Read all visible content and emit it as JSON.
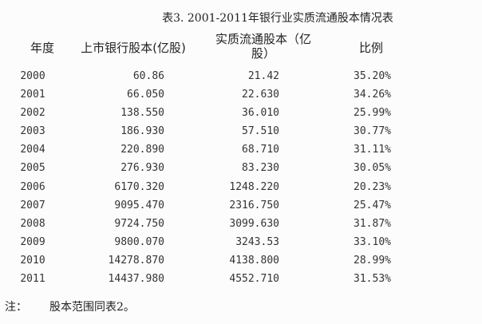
{
  "title": "表3. 2001-2011年银行业实质流通股本情况表",
  "headers": {
    "year": "年度",
    "listed_shares": "上市银行股本(亿股)",
    "float_shares_line1": "实质流通股本（亿",
    "float_shares_line2": "股）",
    "ratio": "比例"
  },
  "rows": [
    {
      "year": "2000",
      "listed": "60.86",
      "float": "21.42",
      "ratio": "35.20%"
    },
    {
      "year": "2001",
      "listed": "66.050",
      "float": "22.630",
      "ratio": "34.26%"
    },
    {
      "year": "2002",
      "listed": "138.550",
      "float": "36.010",
      "ratio": "25.99%"
    },
    {
      "year": "2003",
      "listed": "186.930",
      "float": "57.510",
      "ratio": "30.77%"
    },
    {
      "year": "2004",
      "listed": "220.890",
      "float": "68.710",
      "ratio": "31.11%"
    },
    {
      "year": "2005",
      "listed": "276.930",
      "float": "83.230",
      "ratio": "30.05%"
    },
    {
      "year": "2006",
      "listed": "6170.320",
      "float": "1248.220",
      "ratio": "20.23%"
    },
    {
      "year": "2007",
      "listed": "9095.470",
      "float": "2316.750",
      "ratio": "25.47%"
    },
    {
      "year": "2008",
      "listed": "9724.750",
      "float": "3099.630",
      "ratio": "31.87%"
    },
    {
      "year": "2009",
      "listed": "9800.070",
      "float": "3243.53",
      "ratio": "33.10%"
    },
    {
      "year": "2010",
      "listed": "14278.870",
      "float": "4138.800",
      "ratio": "28.99%"
    },
    {
      "year": "2011",
      "listed": "14437.980",
      "float": "4552.710",
      "ratio": "31.53%"
    }
  ],
  "note": {
    "label": "注：",
    "text": "股本范围同表2。"
  }
}
